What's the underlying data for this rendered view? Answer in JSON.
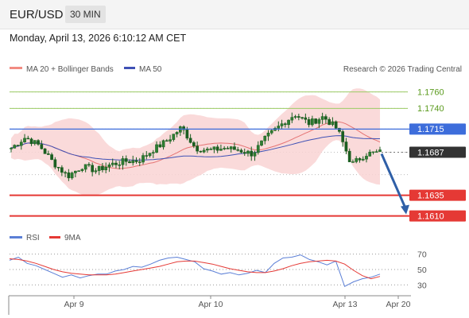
{
  "header": {
    "symbol": "EUR/USD",
    "timeframe": "30 MIN"
  },
  "timestamp": "Monday, April 13, 2026 6:10:12 AM CET",
  "legend": {
    "ma20_bb": "MA 20 + Bollinger Bands",
    "ma50": "MA 50",
    "copyright": "Research © 2026 Trading Central",
    "rsi": "RSI",
    "rsi_ma": "9MA"
  },
  "colors": {
    "candle": "#2e7d32",
    "bollinger_fill": "#f9d4d4",
    "ma20": "#e57373",
    "ma50": "#3f51b5",
    "level_green": "#9ccc65",
    "level_blue": "#3d6ddb",
    "level_red": "#e53935",
    "price_tag": "#333333",
    "arrow": "#2f5fa7",
    "rsi": "#5b7fd6",
    "rsi_ma": "#e53935"
  },
  "chart_data": [
    {
      "type": "candlestick",
      "y_axis_side": "right",
      "levels": [
        {
          "value": 1.176,
          "label": "1.1760",
          "kind": "resistance"
        },
        {
          "value": 1.174,
          "label": "1.1740",
          "kind": "resistance"
        },
        {
          "value": 1.1715,
          "label": "1.1715",
          "kind": "pivot"
        },
        {
          "value": 1.1687,
          "label": "1.1687",
          "kind": "last"
        },
        {
          "value": 1.1635,
          "label": "1.1635",
          "kind": "support"
        },
        {
          "value": 1.161,
          "label": "1.1610",
          "kind": "support"
        }
      ],
      "close_path": [
        [
          "Apr 8",
          1.1692
        ],
        [
          "Apr 8",
          1.1705
        ],
        [
          "Apr 8",
          1.1695
        ],
        [
          "Apr 9",
          1.1674
        ],
        [
          "Apr 9",
          1.1658
        ],
        [
          "Apr 9",
          1.167
        ],
        [
          "Apr 9",
          1.1665
        ],
        [
          "Apr 9",
          1.1672
        ],
        [
          "Apr 9",
          1.1676
        ],
        [
          "Apr 9",
          1.1677
        ],
        [
          "Apr 9",
          1.169
        ],
        [
          "Apr 9",
          1.1701
        ],
        [
          "Apr 10",
          1.1717
        ],
        [
          "Apr 10",
          1.1692
        ],
        [
          "Apr 10",
          1.1689
        ],
        [
          "Apr 10",
          1.1692
        ],
        [
          "Apr 10",
          1.169
        ],
        [
          "Apr 10",
          1.1685
        ],
        [
          "Apr 10",
          1.1705
        ],
        [
          "Apr 10",
          1.172
        ],
        [
          "Apr 10",
          1.1733
        ],
        [
          "Apr 10",
          1.1722
        ],
        [
          "Apr 10",
          1.173
        ],
        [
          "Apr 10",
          1.1715
        ],
        [
          "Apr 13",
          1.1672
        ],
        [
          "Apr 13",
          1.1685
        ],
        [
          "Apr 13",
          1.1687
        ]
      ],
      "arrow": {
        "from": 1.1687,
        "to": 1.161
      }
    },
    {
      "type": "line",
      "name": "RSI",
      "y_ticks": [
        70,
        50,
        30
      ],
      "ylim": [
        20,
        80
      ],
      "x_ticks": [
        "Apr 9",
        "Apr 10",
        "Apr 13",
        "Apr 20"
      ],
      "series": [
        {
          "name": "RSI",
          "values": [
            62,
            66,
            58,
            55,
            50,
            45,
            40,
            43,
            39,
            42,
            44,
            44,
            48,
            50,
            54,
            53,
            57,
            62,
            65,
            66,
            63,
            60,
            51,
            48,
            44,
            46,
            43,
            45,
            49,
            46,
            58,
            65,
            66,
            69,
            63,
            60,
            56,
            61,
            28,
            34,
            38,
            40,
            44
          ]
        },
        {
          "name": "9MA",
          "values": [
            64,
            63,
            61,
            58,
            54,
            50,
            47,
            45,
            44,
            43,
            43,
            43,
            44,
            46,
            48,
            50,
            52,
            54,
            57,
            60,
            61,
            61,
            59,
            57,
            54,
            51,
            49,
            47,
            46,
            46,
            48,
            51,
            55,
            58,
            60,
            61,
            62,
            61,
            57,
            49,
            42,
            38,
            41
          ]
        }
      ]
    }
  ]
}
